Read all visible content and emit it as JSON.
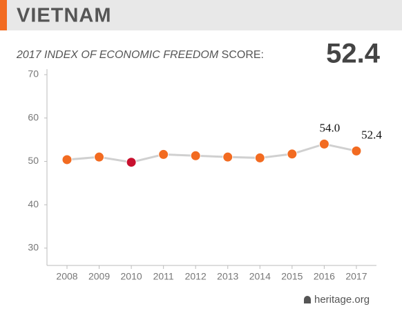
{
  "chart_data": {
    "type": "line",
    "title": "VIETNAM",
    "subtitle_italic": "2017 INDEX OF ECONOMIC FREEDOM",
    "subtitle": "SCORE:",
    "score": "52.4",
    "categories": [
      "2008",
      "2009",
      "2010",
      "2011",
      "2012",
      "2013",
      "2014",
      "2015",
      "2016",
      "2017"
    ],
    "values": [
      50.4,
      51.0,
      49.8,
      51.6,
      51.3,
      51.0,
      50.8,
      51.7,
      54.0,
      52.4
    ],
    "value_labels": [
      null,
      null,
      null,
      null,
      null,
      null,
      null,
      null,
      "54.0",
      "52.4"
    ],
    "line_color": "#d0d0d0",
    "point_colors": [
      "#f26b21",
      "#f26b21",
      "#c8102e",
      "#f26b21",
      "#f26b21",
      "#f26b21",
      "#f26b21",
      "#f26b21",
      "#f26b21",
      "#f26b21"
    ],
    "ylim": [
      26,
      70
    ],
    "yticks": [
      30,
      40,
      50,
      60,
      70
    ],
    "grid": false,
    "source": "heritage.org"
  }
}
